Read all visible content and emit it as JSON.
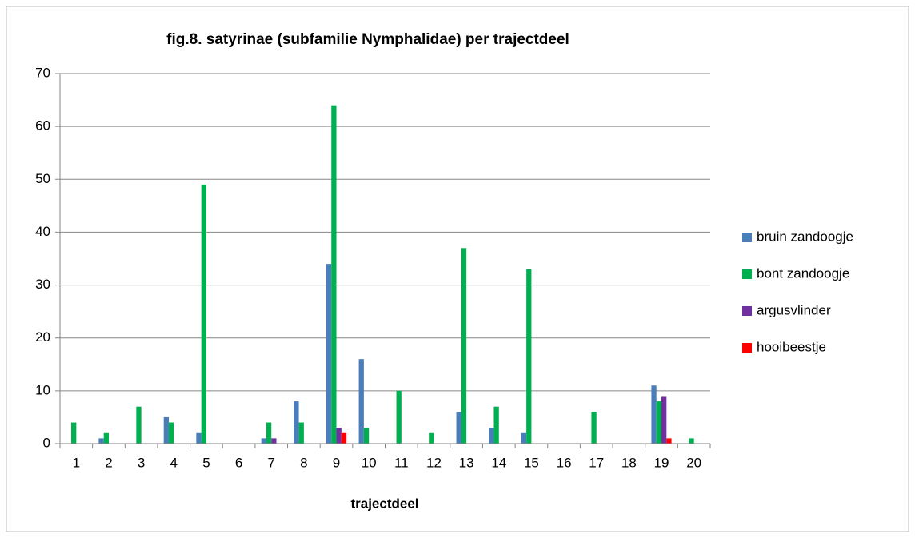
{
  "chart_data": {
    "type": "bar",
    "title": "fig.8. satyrinae (subfamilie Nymphalidae) per trajectdeel",
    "x_label": "trajectdeel",
    "categories": [
      "1",
      "2",
      "3",
      "4",
      "5",
      "6",
      "7",
      "8",
      "9",
      "10",
      "11",
      "12",
      "13",
      "14",
      "15",
      "16",
      "17",
      "18",
      "19",
      "20"
    ],
    "series": [
      {
        "name": "bruin zandoogje",
        "color": "#4a7ebb",
        "values": [
          0,
          1,
          0,
          5,
          2,
          0,
          1,
          8,
          34,
          16,
          0,
          0,
          6,
          3,
          2,
          0,
          0,
          0,
          11,
          0
        ]
      },
      {
        "name": "bont zandoogje",
        "color": "#00b050",
        "values": [
          4,
          2,
          7,
          4,
          49,
          0,
          4,
          4,
          64,
          3,
          10,
          2,
          37,
          7,
          33,
          0,
          6,
          0,
          8,
          1
        ]
      },
      {
        "name": "argusvlinder",
        "color": "#7030a0",
        "values": [
          0,
          0,
          0,
          0,
          0,
          0,
          1,
          0,
          3,
          0,
          0,
          0,
          0,
          0,
          0,
          0,
          0,
          0,
          9,
          0
        ]
      },
      {
        "name": "hooibeestje",
        "color": "#ff0000",
        "values": [
          0,
          0,
          0,
          0,
          0,
          0,
          0,
          0,
          2,
          0,
          0,
          0,
          0,
          0,
          0,
          0,
          0,
          0,
          1,
          0
        ]
      }
    ],
    "ylim": [
      0,
      70
    ],
    "yticks": [
      0,
      10,
      20,
      30,
      40,
      50,
      60,
      70
    ],
    "grid": true,
    "legend": "right"
  }
}
